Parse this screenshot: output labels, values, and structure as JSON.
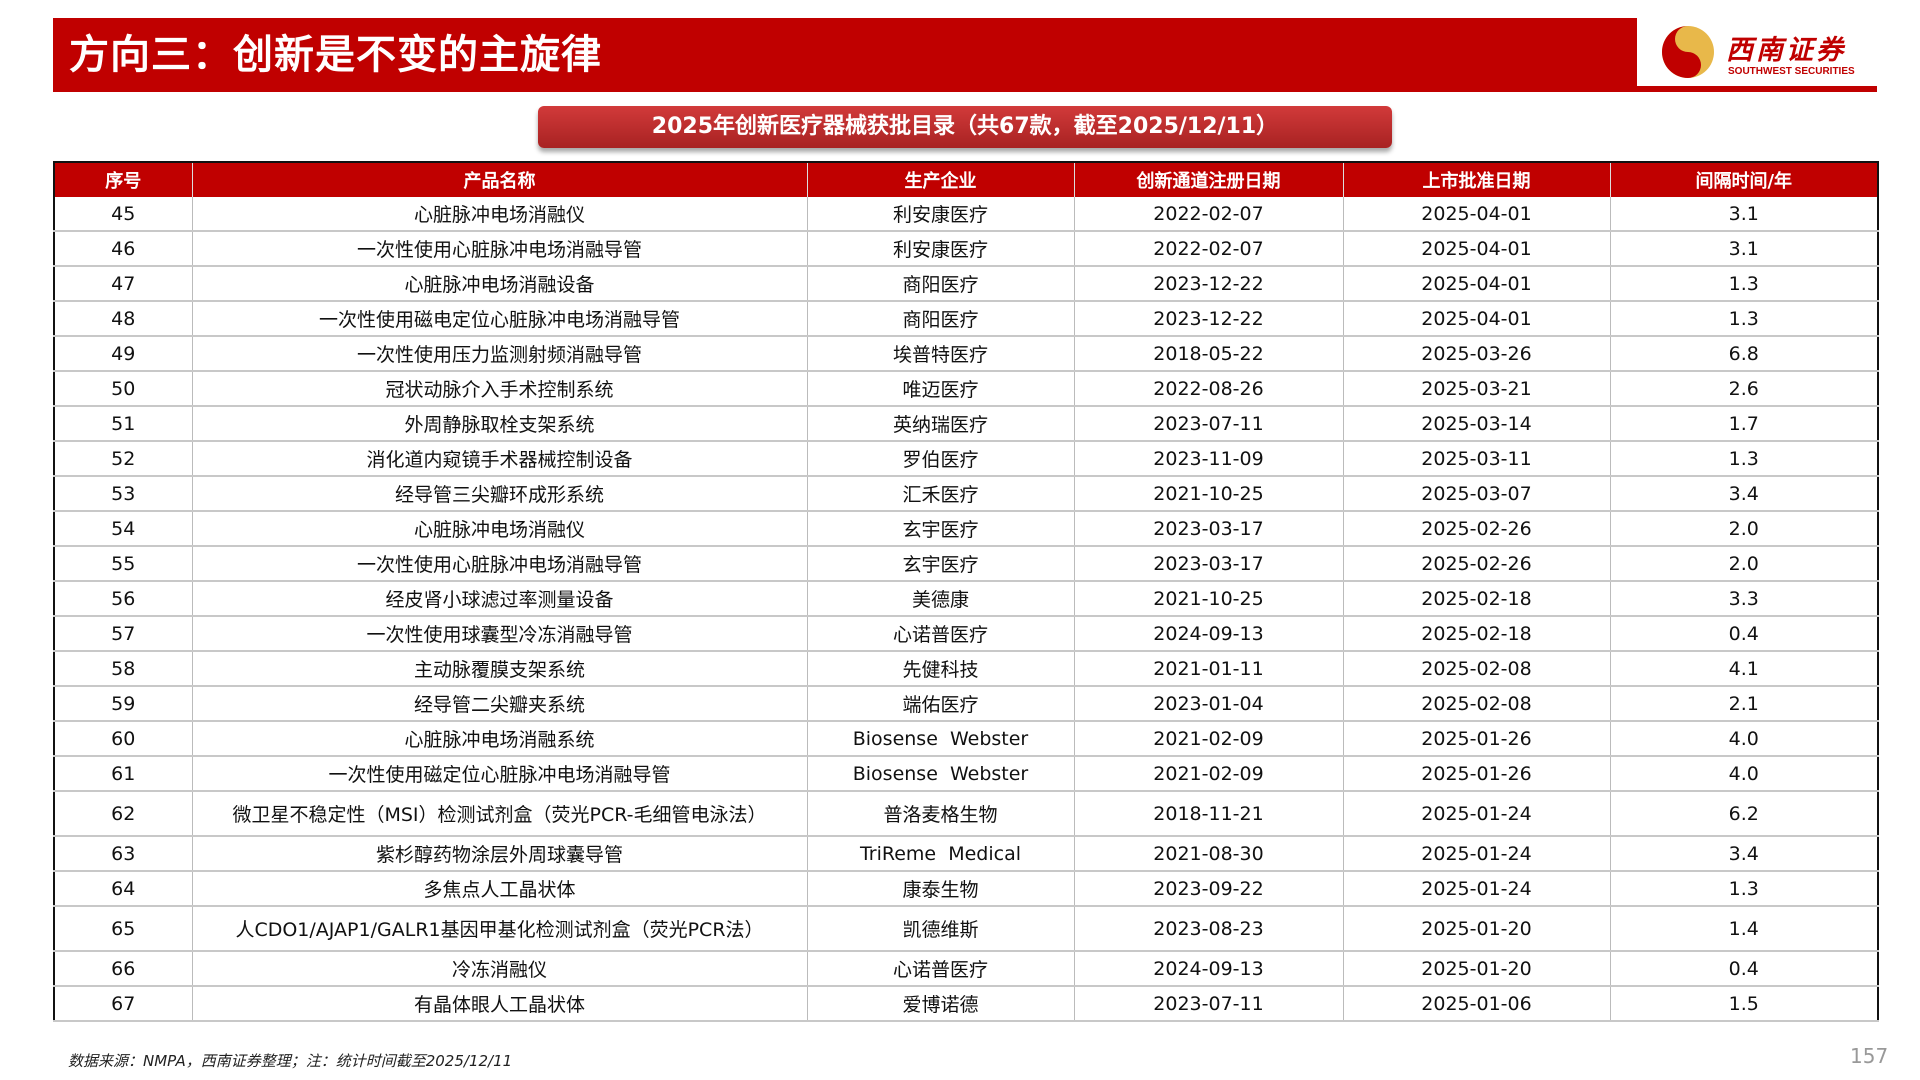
{
  "header": {
    "title": "方向三：创新是不变的主旋律"
  },
  "logo": {
    "cn": "西南证券",
    "en": "SOUTHWEST SECURITIES"
  },
  "table_title": "2025年创新医疗器械获批目录（共67款，截至2025/12/11）",
  "colors": {
    "brand_red": "#c00000"
  },
  "table": {
    "columns": [
      "序号",
      "产品名称",
      "生产企业",
      "创新通道注册日期",
      "上市批准日期",
      "间隔时间/年"
    ],
    "rows": [
      [
        "45",
        "心脏脉冲电场消融仪",
        "利安康医疗",
        "2022-02-07",
        "2025-04-01",
        "3.1"
      ],
      [
        "46",
        "一次性使用心脏脉冲电场消融导管",
        "利安康医疗",
        "2022-02-07",
        "2025-04-01",
        "3.1"
      ],
      [
        "47",
        "心脏脉冲电场消融设备",
        "商阳医疗",
        "2023-12-22",
        "2025-04-01",
        "1.3"
      ],
      [
        "48",
        "一次性使用磁电定位心脏脉冲电场消融导管",
        "商阳医疗",
        "2023-12-22",
        "2025-04-01",
        "1.3"
      ],
      [
        "49",
        "一次性使用压力监测射频消融导管",
        "埃普特医疗",
        "2018-05-22",
        "2025-03-26",
        "6.8"
      ],
      [
        "50",
        "冠状动脉介入手术控制系统",
        "唯迈医疗",
        "2022-08-26",
        "2025-03-21",
        "2.6"
      ],
      [
        "51",
        "外周静脉取栓支架系统",
        "英纳瑞医疗",
        "2023-07-11",
        "2025-03-14",
        "1.7"
      ],
      [
        "52",
        "消化道内窥镜手术器械控制设备",
        "罗伯医疗",
        "2023-11-09",
        "2025-03-11",
        "1.3"
      ],
      [
        "53",
        "经导管三尖瓣环成形系统",
        "汇禾医疗",
        "2021-10-25",
        "2025-03-07",
        "3.4"
      ],
      [
        "54",
        "心脏脉冲电场消融仪",
        "玄宇医疗",
        "2023-03-17",
        "2025-02-26",
        "2.0"
      ],
      [
        "55",
        "一次性使用心脏脉冲电场消融导管",
        "玄宇医疗",
        "2023-03-17",
        "2025-02-26",
        "2.0"
      ],
      [
        "56",
        "经皮肾小球滤过率测量设备",
        "美德康",
        "2021-10-25",
        "2025-02-18",
        "3.3"
      ],
      [
        "57",
        "一次性使用球囊型冷冻消融导管",
        "心诺普医疗",
        "2024-09-13",
        "2025-02-18",
        "0.4"
      ],
      [
        "58",
        "主动脉覆膜支架系统",
        "先健科技",
        "2021-01-11",
        "2025-02-08",
        "4.1"
      ],
      [
        "59",
        "经导管二尖瓣夹系统",
        "端佑医疗",
        "2023-01-04",
        "2025-02-08",
        "2.1"
      ],
      [
        "60",
        "心脏脉冲电场消融系统",
        "Biosense  Webster",
        "2021-02-09",
        "2025-01-26",
        "4.0"
      ],
      [
        "61",
        "一次性使用磁定位心脏脉冲电场消融导管",
        "Biosense  Webster",
        "2021-02-09",
        "2025-01-26",
        "4.0"
      ],
      [
        "62",
        "微卫星不稳定性（MSI）检测试剂盒（荧光PCR-毛细管电泳法）",
        "普洛麦格生物",
        "2018-11-21",
        "2025-01-24",
        "6.2"
      ],
      [
        "63",
        "紫杉醇药物涂层外周球囊导管",
        "TriReme  Medical",
        "2021-08-30",
        "2025-01-24",
        "3.4"
      ],
      [
        "64",
        "多焦点人工晶状体",
        "康泰生物",
        "2023-09-22",
        "2025-01-24",
        "1.3"
      ],
      [
        "65",
        "人CDO1/AJAP1/GALR1基因甲基化检测试剂盒（荧光PCR法）",
        "凯德维斯",
        "2023-08-23",
        "2025-01-20",
        "1.4"
      ],
      [
        "66",
        "冷冻消融仪",
        "心诺普医疗",
        "2024-09-13",
        "2025-01-20",
        "0.4"
      ],
      [
        "67",
        "有晶体眼人工晶状体",
        "爱博诺德",
        "2023-07-11",
        "2025-01-06",
        "1.5"
      ]
    ]
  },
  "footer": {
    "source": "数据来源：NMPA，西南证券整理；注：统计时间截至2025/12/11",
    "page_number": "157"
  }
}
